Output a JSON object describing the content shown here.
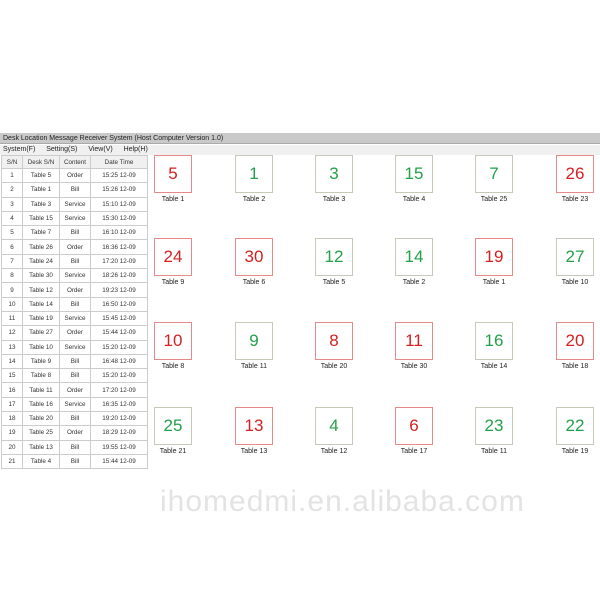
{
  "window": {
    "title": "Desk Location Message Receiver System (Host Computer Version 1.0)"
  },
  "menu": [
    "System(F)",
    "Setting(S)",
    "View(V)",
    "Help(H)"
  ],
  "log": {
    "headers": [
      "S/N",
      "Desk S/N",
      "Content",
      "Date Time"
    ],
    "rows": [
      [
        "1",
        "Table 5",
        "Order",
        "15:25  12-09"
      ],
      [
        "2",
        "Table 1",
        "Bill",
        "15:26 12-09"
      ],
      [
        "3",
        "Table 3",
        "Service",
        "15:10  12-09"
      ],
      [
        "4",
        "Table 15",
        "Service",
        "15:30  12-09"
      ],
      [
        "5",
        "Table 7",
        "Bill",
        "16:10  12-09"
      ],
      [
        "6",
        "Table 26",
        "Order",
        "16:36  12-09"
      ],
      [
        "7",
        "Table 24",
        "Bill",
        "17:20  12-09"
      ],
      [
        "8",
        "Table 30",
        "Service",
        "18:26 12-09"
      ],
      [
        "9",
        "Table 12",
        "Order",
        "19:23  12-09"
      ],
      [
        "10",
        "Table 14",
        "Bill",
        "16:50  12-09"
      ],
      [
        "11",
        "Table 19",
        "Service",
        "15:45 12-09"
      ],
      [
        "12",
        "Table 27",
        "Order",
        "15:44  12-09"
      ],
      [
        "13",
        "Table 10",
        "Service",
        "15:20  12-09"
      ],
      [
        "14",
        "Table 9",
        "Bill",
        "16:48  12-09"
      ],
      [
        "15",
        "Table 8",
        "Bill",
        "15:20  12-09"
      ],
      [
        "16",
        "Table 11",
        "Order",
        "17:20  12-09"
      ],
      [
        "17",
        "Table 16",
        "Service",
        "16:35  12-09"
      ],
      [
        "18",
        "Table 20",
        "Bill",
        "19:20  12-09"
      ],
      [
        "19",
        "Table 25",
        "Order",
        "18:29  12-09"
      ],
      [
        "20",
        "Table 13",
        "Bill",
        "19:55  12-09"
      ],
      [
        "21",
        "Table 4",
        "Bill",
        "15:44  12-09"
      ]
    ]
  },
  "tiles": [
    [
      {
        "n": "5",
        "s": "red",
        "l": "Table 1"
      },
      {
        "n": "1",
        "s": "green",
        "l": "Table 2"
      },
      {
        "n": "3",
        "s": "green",
        "l": "Table 3"
      },
      {
        "n": "15",
        "s": "green",
        "l": "Table 4"
      },
      {
        "n": "7",
        "s": "green",
        "l": "Table 25"
      },
      {
        "n": "26",
        "s": "red",
        "l": "Table 23"
      }
    ],
    [
      {
        "n": "24",
        "s": "red",
        "l": "Table 9"
      },
      {
        "n": "30",
        "s": "red",
        "l": "Table 6"
      },
      {
        "n": "12",
        "s": "green",
        "l": "Table 5"
      },
      {
        "n": "14",
        "s": "green",
        "l": "Table 2"
      },
      {
        "n": "19",
        "s": "red",
        "l": "Table 1"
      },
      {
        "n": "27",
        "s": "green",
        "l": "Table 10"
      }
    ],
    [
      {
        "n": "10",
        "s": "red",
        "l": "Table 8"
      },
      {
        "n": "9",
        "s": "green",
        "l": "Table 11"
      },
      {
        "n": "8",
        "s": "red",
        "l": "Table 20"
      },
      {
        "n": "11",
        "s": "red",
        "l": "Table 30"
      },
      {
        "n": "16",
        "s": "green",
        "l": "Table 14"
      },
      {
        "n": "20",
        "s": "red",
        "l": "Table 18"
      }
    ],
    [
      {
        "n": "25",
        "s": "green",
        "l": "Table 21"
      },
      {
        "n": "13",
        "s": "red",
        "l": "Table 13"
      },
      {
        "n": "4",
        "s": "green",
        "l": "Table 12"
      },
      {
        "n": "6",
        "s": "red",
        "l": "Table 17"
      },
      {
        "n": "23",
        "s": "green",
        "l": "Table 11"
      },
      {
        "n": "22",
        "s": "green",
        "l": "Table 19"
      }
    ]
  ],
  "watermark": "ihomedmi.en.alibaba.com",
  "colors": {
    "alert": "#d42020",
    "ok": "#23a04a"
  }
}
